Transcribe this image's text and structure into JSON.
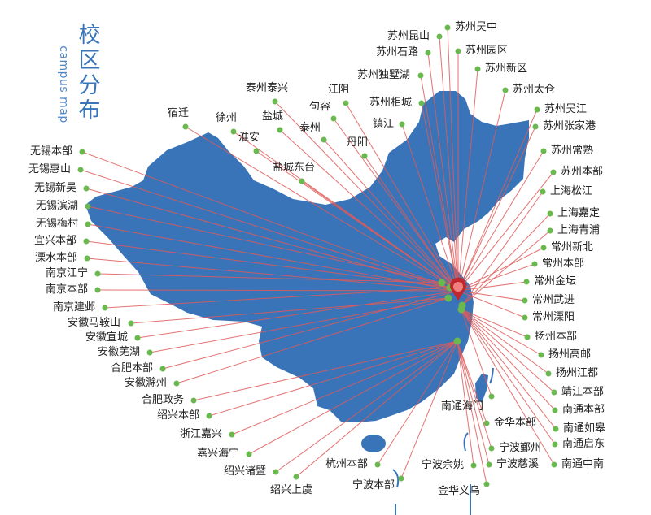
{
  "title": {
    "main": "校区分布",
    "sub": "campus map"
  },
  "colors": {
    "map": "#3a74b8",
    "dot": "#6ab94f",
    "line": "#e05a5a",
    "marker": "#c0282d"
  },
  "marker_icon": "map-pin-icon",
  "campuses": [
    "无锡本部",
    "无锡惠山",
    "无锡新吴",
    "无锡滨湖",
    "无锡梅村",
    "宜兴本部",
    "溧水本部",
    "南京江宁",
    "南京本部",
    "南京建邺",
    "安徽马鞍山",
    "安徽宣城",
    "安徽芜湖",
    "合肥本部",
    "安徽滁州",
    "合肥政务",
    "绍兴本部",
    "浙江嘉兴",
    "嘉兴海宁",
    "绍兴诸暨",
    "绍兴上虞",
    "杭州本部",
    "宁波本部",
    "宁波余姚",
    "金华义乌",
    "宁波慈溪",
    "宁波鄞州",
    "金华本部",
    "南通海门",
    "南通中南",
    "南通启东",
    "南通如皋",
    "南通本部",
    "靖江本部",
    "扬州江都",
    "扬州高邮",
    "扬州本部",
    "常州溧阳",
    "常州武进",
    "常州金坛",
    "常州本部",
    "常州新北",
    "上海青浦",
    "上海嘉定",
    "上海松江",
    "苏州本部",
    "苏州常熟",
    "苏州张家港",
    "苏州吴江",
    "苏州太仓",
    "苏州新区",
    "苏州园区",
    "苏州吴中",
    "苏州昆山",
    "苏州石路",
    "苏州独墅湖",
    "苏州相城",
    "镇江",
    "江阴",
    "句容",
    "泰州",
    "丹阳",
    "泰州泰兴",
    "盐城",
    "徐州",
    "淮安",
    "宿迁",
    "盐城东台"
  ]
}
